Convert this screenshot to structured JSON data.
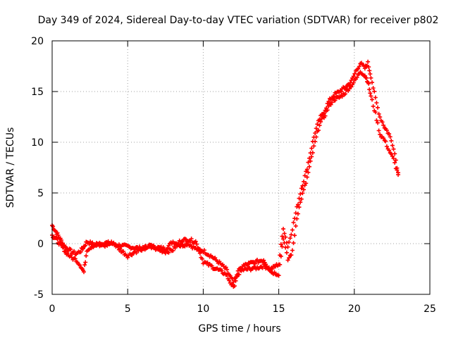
{
  "chart_data": {
    "type": "scatter",
    "title": "Day 349 of 2024, Sidereal Day-to-day VTEC variation (SDTVAR) for receiver p802",
    "xlabel": "GPS time / hours",
    "ylabel": "SDTVAR / TECUs",
    "xlim": [
      0,
      25
    ],
    "ylim": [
      -5,
      20
    ],
    "xticks": [
      0,
      5,
      10,
      15,
      20,
      25
    ],
    "yticks": [
      -5,
      0,
      5,
      10,
      15,
      20
    ],
    "grid": true,
    "marker": "+",
    "color": "#ff0000",
    "series": [
      {
        "name": "SDTVAR",
        "x": [
          0.0,
          0.2,
          0.4,
          0.6,
          0.8,
          1.0,
          1.3,
          1.6,
          1.9,
          2.1,
          2.3,
          2.6,
          3.0,
          3.5,
          4.0,
          4.5,
          5.0,
          5.5,
          6.0,
          6.5,
          7.0,
          7.5,
          8.0,
          8.5,
          9.0,
          9.5,
          10.0,
          10.5,
          11.0,
          11.5,
          12.0,
          12.3,
          12.6,
          13.0,
          13.5,
          14.0,
          14.5,
          15.0,
          15.3,
          15.6,
          15.9,
          16.2,
          16.5,
          16.8,
          17.1,
          17.4,
          17.7,
          18.0,
          18.3,
          18.6,
          19.0,
          19.4,
          19.8,
          20.1,
          20.4,
          20.7,
          20.9,
          21.1,
          21.4,
          21.7,
          22.0,
          22.3,
          22.6,
          22.9
        ],
        "y": [
          1.8,
          1.3,
          0.8,
          0.3,
          -0.2,
          -0.5,
          -0.8,
          -1.0,
          -0.7,
          -0.3,
          0.2,
          0.0,
          -0.2,
          0.1,
          0.0,
          -0.2,
          -0.3,
          -0.4,
          -0.5,
          -0.3,
          -0.4,
          -0.5,
          0.2,
          -0.2,
          0.0,
          -0.5,
          -0.7,
          -1.2,
          -1.8,
          -2.5,
          -3.8,
          -3.0,
          -2.6,
          -2.5,
          -2.4,
          -2.2,
          -2.5,
          -2.0,
          1.6,
          -0.3,
          1.5,
          3.5,
          5.5,
          7.0,
          9.0,
          11.0,
          12.3,
          13.0,
          14.0,
          14.6,
          15.0,
          15.4,
          16.0,
          17.0,
          17.8,
          17.3,
          17.8,
          16.5,
          14.3,
          12.5,
          11.5,
          10.8,
          9.5,
          7.0
        ],
        "y_alt": [
          0.8,
          0.6,
          0.2,
          -0.2,
          -0.6,
          -1.0,
          -1.4,
          -1.6,
          -2.2,
          -2.8,
          -0.6,
          -0.3,
          0.0,
          -0.2,
          0.1,
          -0.6,
          -1.2,
          -0.8,
          -0.5,
          -0.2,
          -0.6,
          -0.8,
          -0.6,
          0.3,
          0.4,
          0.2,
          -1.8,
          -2.2,
          -2.6,
          -3.0,
          -4.4,
          -2.8,
          -2.2,
          -2.0,
          -1.8,
          -1.6,
          -2.8,
          -3.0,
          0.6,
          -1.6,
          -0.8,
          2.6,
          4.5,
          6.0,
          8.0,
          10.0,
          11.8,
          12.5,
          13.5,
          14.2,
          14.4,
          14.9,
          15.6,
          16.2,
          17.0,
          16.6,
          16.0,
          14.5,
          12.8,
          10.8,
          10.2,
          9.2,
          8.3,
          6.8
        ]
      }
    ]
  }
}
